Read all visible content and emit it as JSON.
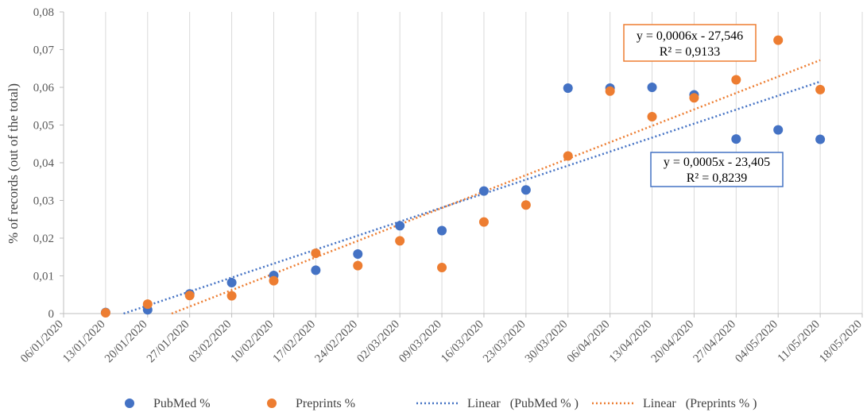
{
  "chart_data": {
    "type": "scatter",
    "title": "",
    "xlabel": "",
    "ylabel": "% of records (out of the total)",
    "x_ticks": [
      "06/01/2020",
      "13/01/2020",
      "20/01/2020",
      "27/01/2020",
      "03/02/2020",
      "10/02/2020",
      "17/02/2020",
      "24/02/2020",
      "02/03/2020",
      "09/03/2020",
      "16/03/2020",
      "23/03/2020",
      "30/03/2020",
      "06/04/2020",
      "13/04/2020",
      "20/04/2020",
      "27/04/2020",
      "04/05/2020",
      "11/05/2020",
      "18/05/2020"
    ],
    "y_ticks": [
      "0",
      "0,01",
      "0,02",
      "0,03",
      "0,04",
      "0,05",
      "0,06",
      "0,07",
      "0,08"
    ],
    "ylim": [
      0,
      0.08
    ],
    "grid": "vertical",
    "legend_position": "bottom",
    "series": [
      {
        "name": "PubMed %",
        "color": "#4472C4",
        "x": [
          "13/01/2020",
          "20/01/2020",
          "27/01/2020",
          "03/02/2020",
          "10/02/2020",
          "17/02/2020",
          "24/02/2020",
          "02/03/2020",
          "09/03/2020",
          "16/03/2020",
          "23/03/2020",
          "30/03/2020",
          "06/04/2020",
          "13/04/2020",
          "20/04/2020",
          "27/04/2020",
          "04/05/2020",
          "11/05/2020"
        ],
        "y": [
          0.0003,
          0.001,
          0.0052,
          0.0082,
          0.0101,
          0.0115,
          0.0158,
          0.0233,
          0.022,
          0.0325,
          0.0328,
          0.0598,
          0.0598,
          0.06,
          0.058,
          0.0463,
          0.0487,
          0.0462
        ]
      },
      {
        "name": "Preprints %",
        "color": "#ED7D31",
        "x": [
          "13/01/2020",
          "20/01/2020",
          "27/01/2020",
          "03/02/2020",
          "10/02/2020",
          "17/02/2020",
          "24/02/2020",
          "02/03/2020",
          "09/03/2020",
          "16/03/2020",
          "23/03/2020",
          "30/03/2020",
          "06/04/2020",
          "13/04/2020",
          "20/04/2020",
          "27/04/2020",
          "04/05/2020",
          "11/05/2020"
        ],
        "y": [
          0.0002,
          0.0025,
          0.0048,
          0.0047,
          0.0087,
          0.016,
          0.0127,
          0.0193,
          0.0122,
          0.0243,
          0.0288,
          0.0418,
          0.059,
          0.0522,
          0.0572,
          0.062,
          0.0725,
          0.0594
        ]
      }
    ],
    "trendlines": [
      {
        "name": "Linear   (PubMed % )",
        "color": "#4472C4",
        "from": {
          "x": "16/01/2020",
          "y": 0
        },
        "to": {
          "x": "11/05/2020",
          "y": 0.0615
        },
        "equation": "y = 0,0005x  - 23,405",
        "r2": "R² = 0,8239"
      },
      {
        "name": "Linear   (Preprints % )",
        "color": "#ED7D31",
        "from": {
          "x": "24/01/2020",
          "y": 0
        },
        "to": {
          "x": "11/05/2020",
          "y": 0.0672
        },
        "equation": "y = 0,0006x  - 27,546",
        "r2": "R² = 0,9133"
      }
    ]
  }
}
